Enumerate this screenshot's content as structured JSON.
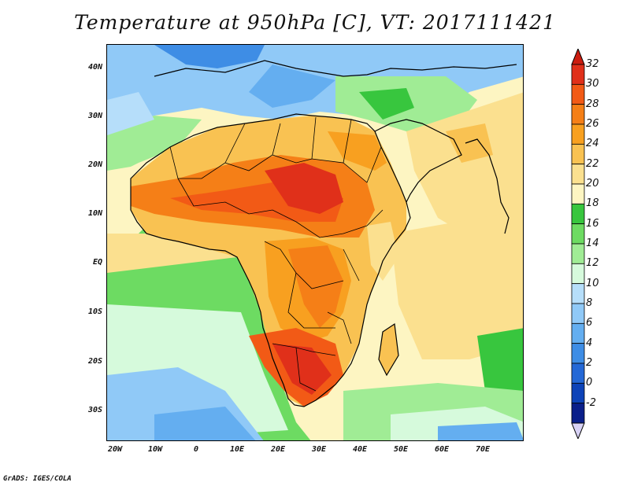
{
  "title": "Temperature at 950hPa [C], VT: 2017111421",
  "footer": "GrADS: IGES/COLA",
  "map": {
    "region": "Africa",
    "variable": "Temperature at 950hPa",
    "units": "C",
    "lon_range": [
      -22,
      80
    ],
    "lat_range": [
      -37,
      45
    ]
  },
  "axes": {
    "lat_labels": [
      {
        "text": "40N",
        "value": 40
      },
      {
        "text": "30N",
        "value": 30
      },
      {
        "text": "20N",
        "value": 20
      },
      {
        "text": "10N",
        "value": 10
      },
      {
        "text": "EQ",
        "value": 0
      },
      {
        "text": "10S",
        "value": -10
      },
      {
        "text": "20S",
        "value": -20
      },
      {
        "text": "30S",
        "value": -30
      }
    ],
    "lon_labels": [
      {
        "text": "20W",
        "value": -20
      },
      {
        "text": "10W",
        "value": -10
      },
      {
        "text": "0",
        "value": 0
      },
      {
        "text": "10E",
        "value": 10
      },
      {
        "text": "20E",
        "value": 20
      },
      {
        "text": "30E",
        "value": 30
      },
      {
        "text": "40E",
        "value": 40
      },
      {
        "text": "50E",
        "value": 50
      },
      {
        "text": "60E",
        "value": 60
      },
      {
        "text": "70E",
        "value": 70
      }
    ]
  },
  "colorbar": {
    "labels": [
      "32",
      "30",
      "28",
      "26",
      "24",
      "22",
      "20",
      "18",
      "16",
      "14",
      "12",
      "10",
      "8",
      "6",
      "4",
      "2",
      "0",
      "-2"
    ],
    "colors": [
      "#e0301a",
      "#f25a16",
      "#f57f17",
      "#f8a020",
      "#f9c252",
      "#fbe08f",
      "#fdf5c2",
      "#38c63e",
      "#6ddb62",
      "#a0ec95",
      "#d6fadc",
      "#b6defa",
      "#90c9f7",
      "#64aef0",
      "#3e8de5",
      "#2468d6",
      "#0d43b8",
      "#0a1f8a"
    ],
    "top_arrow_color": "#cc1d10",
    "bottom_arrow_color": "#d8d2f5"
  },
  "palette": {
    "ocean_cold": "#a7d6f7",
    "ocean_mid": "#d6fadc",
    "ocean_green": "#6ddb62",
    "land_warm": "#fbe08f",
    "land_hot": "#f57f17",
    "land_hottest": "#e0301a",
    "mediterranean": "#64aef0",
    "south_cold": "#3e8de5"
  }
}
